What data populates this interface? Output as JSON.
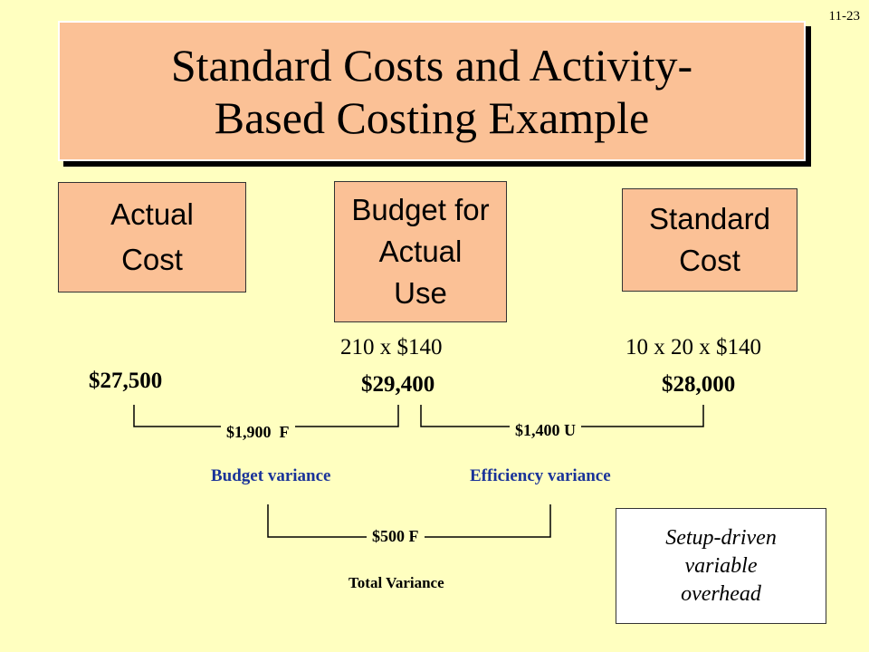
{
  "slide_number": "11-23",
  "title": {
    "line1": "Standard Costs and Activity-",
    "line2": "Based Costing Example"
  },
  "columns": {
    "actual": {
      "lines": [
        "Actual",
        "Cost"
      ],
      "amount": "$27,500"
    },
    "budget": {
      "lines": [
        "Budget for",
        "Actual",
        "Use"
      ],
      "calc": "210 x $140",
      "amount": "$29,400"
    },
    "standard": {
      "lines": [
        "Standard",
        "Cost"
      ],
      "calc": "10 x 20 x $140",
      "amount": "$28,000"
    }
  },
  "variances": {
    "budget": {
      "amount": "$1,900",
      "flag": "F",
      "label": "Budget variance"
    },
    "efficiency": {
      "amount": "$1,400",
      "flag": "U",
      "label": "Efficiency variance"
    },
    "total": {
      "amount": "$500 F",
      "label": "Total Variance"
    }
  },
  "note": {
    "lines": [
      "Setup-driven",
      "variable",
      "overhead"
    ]
  }
}
